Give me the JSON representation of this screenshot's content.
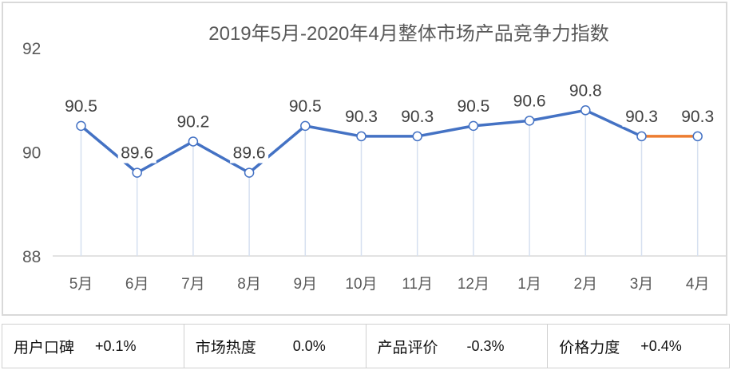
{
  "chart_data": {
    "type": "line",
    "title": "2019年5月-2020年4月整体市场产品竞争力指数",
    "categories": [
      "5月",
      "6月",
      "7月",
      "8月",
      "9月",
      "10月",
      "11月",
      "12月",
      "1月",
      "2月",
      "3月",
      "4月"
    ],
    "series": [
      {
        "values": [
          90.5,
          89.6,
          90.2,
          89.6,
          90.5,
          90.3,
          90.3,
          90.5,
          90.6,
          90.8,
          90.3,
          90.3
        ]
      }
    ],
    "data_labels": [
      "90.5",
      "89.6",
      "90.2",
      "89.6",
      "90.5",
      "90.3",
      "90.3",
      "90.5",
      "90.6",
      "90.8",
      "90.3",
      "90.3"
    ],
    "ylim": [
      88,
      92
    ],
    "yticks": [
      "88",
      "90",
      "92"
    ],
    "grid": false,
    "drop_lines": true,
    "colors": {
      "line": "#4472c4",
      "last_segment": "#ed7d31",
      "drop_line": "#d6e0f0"
    }
  },
  "summary": [
    {
      "label": "用户口碑",
      "value": "+0.1%"
    },
    {
      "label": "市场热度",
      "value": "0.0%"
    },
    {
      "label": "产品评价",
      "value": "-0.3%"
    },
    {
      "label": "价格力度",
      "value": "+0.4%"
    }
  ]
}
